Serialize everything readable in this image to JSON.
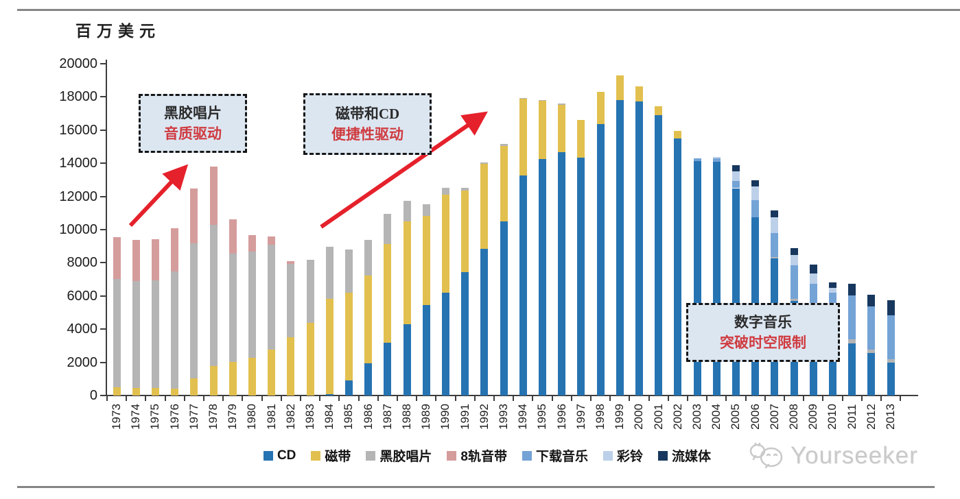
{
  "page": {
    "watermark_text": "Yourseeker"
  },
  "chart_data": {
    "type": "bar",
    "stacked": true,
    "title": "",
    "unit_label": "百万美元",
    "xlabel": "",
    "ylabel": "百万美元",
    "ylim": [
      0,
      20000
    ],
    "yticks": [
      0,
      2000,
      4000,
      6000,
      8000,
      10000,
      12000,
      14000,
      16000,
      18000,
      20000
    ],
    "grid": false,
    "legend_position": "bottom",
    "categories": [
      "1973",
      "1974",
      "1975",
      "1976",
      "1977",
      "1978",
      "1979",
      "1980",
      "1981",
      "1982",
      "1983",
      "1984",
      "1985",
      "1986",
      "1987",
      "1988",
      "1989",
      "1990",
      "1991",
      "1992",
      "1993",
      "1994",
      "1995",
      "1996",
      "1997",
      "1998",
      "1999",
      "2000",
      "2001",
      "2002",
      "2003",
      "2004",
      "2005",
      "2006",
      "2007",
      "2008",
      "2009",
      "2010",
      "2011",
      "2012",
      "2013"
    ],
    "series": [
      {
        "name": "CD",
        "color": "#2673b2",
        "values": [
          0,
          0,
          0,
          0,
          0,
          0,
          0,
          0,
          0,
          0,
          0,
          100,
          900,
          1950,
          3200,
          4280,
          5450,
          6210,
          7450,
          8860,
          10490,
          13270,
          14250,
          14690,
          14350,
          16350,
          17830,
          17720,
          16920,
          15490,
          14150,
          14100,
          12500,
          10760,
          8250,
          5700,
          4650,
          4000,
          3150,
          2550,
          2000
        ]
      },
      {
        "name": "磁带",
        "color": "#e2c04f",
        "values": [
          480,
          460,
          460,
          430,
          1030,
          1790,
          2030,
          2280,
          2760,
          3520,
          4400,
          5730,
          5300,
          5280,
          5950,
          6200,
          5380,
          5900,
          4900,
          5100,
          4560,
          4630,
          3530,
          2850,
          2250,
          1950,
          1470,
          900,
          530,
          470,
          0,
          0,
          0,
          0,
          0,
          0,
          0,
          0,
          0,
          0,
          0
        ]
      },
      {
        "name": "黑胶唱片",
        "color": "#b5b5b5",
        "values": [
          6550,
          6460,
          6470,
          7060,
          8150,
          8510,
          6520,
          6410,
          6330,
          4430,
          3800,
          3140,
          2600,
          2150,
          1800,
          1260,
          690,
          420,
          180,
          110,
          100,
          50,
          50,
          50,
          0,
          0,
          0,
          0,
          0,
          0,
          0,
          0,
          0,
          0,
          90,
          140,
          150,
          150,
          250,
          210,
          210
        ]
      },
      {
        "name": "8轨音带",
        "color": "#d59c9c",
        "values": [
          2510,
          2480,
          2490,
          2610,
          3310,
          3500,
          2070,
          960,
          500,
          150,
          0,
          0,
          0,
          0,
          0,
          0,
          0,
          0,
          0,
          0,
          0,
          0,
          0,
          0,
          0,
          0,
          0,
          0,
          0,
          0,
          0,
          0,
          0,
          0,
          0,
          0,
          0,
          0,
          0,
          0,
          0
        ]
      },
      {
        "name": "下载音乐",
        "color": "#74a3d6",
        "values": [
          0,
          0,
          0,
          0,
          0,
          0,
          0,
          0,
          0,
          0,
          0,
          0,
          0,
          0,
          0,
          0,
          0,
          0,
          0,
          0,
          0,
          0,
          0,
          0,
          0,
          0,
          0,
          0,
          0,
          0,
          150,
          200,
          450,
          1000,
          1450,
          2000,
          1950,
          2050,
          2650,
          2620,
          2620
        ]
      },
      {
        "name": "彩铃",
        "color": "#bdd0e9",
        "values": [
          0,
          0,
          0,
          0,
          0,
          0,
          0,
          0,
          0,
          0,
          0,
          0,
          0,
          0,
          0,
          0,
          0,
          0,
          0,
          0,
          0,
          0,
          0,
          0,
          0,
          0,
          0,
          0,
          0,
          0,
          0,
          100,
          550,
          830,
          970,
          620,
          620,
          300,
          0,
          0,
          0
        ]
      },
      {
        "name": "流媒体",
        "color": "#17375e",
        "values": [
          0,
          0,
          0,
          0,
          0,
          0,
          0,
          0,
          0,
          0,
          0,
          0,
          0,
          0,
          0,
          0,
          0,
          0,
          0,
          0,
          0,
          0,
          0,
          0,
          0,
          0,
          0,
          0,
          0,
          0,
          0,
          0,
          400,
          380,
          410,
          440,
          530,
          330,
          700,
          690,
          900
        ]
      }
    ],
    "annotations": [
      {
        "line1": "黑胶唱片",
        "line2": "音质驱动"
      },
      {
        "line1": "磁带和CD",
        "line2": "便捷性驱动"
      },
      {
        "line1": "数字音乐",
        "line2": "突破时空限制"
      }
    ]
  }
}
